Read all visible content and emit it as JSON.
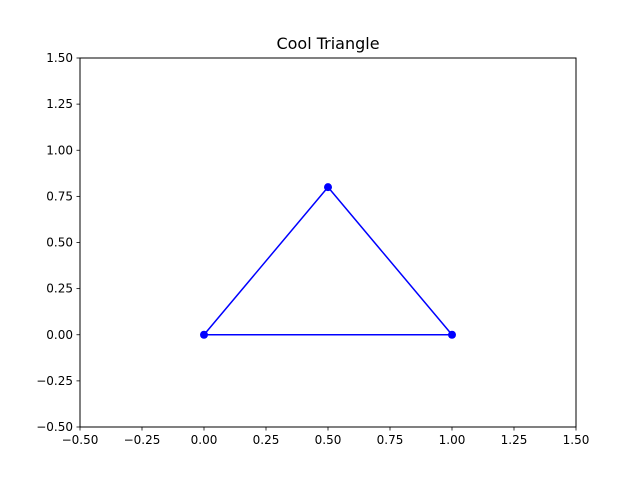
{
  "chart_data": {
    "type": "line",
    "title": "Cool Triangle",
    "xlabel": "",
    "ylabel": "",
    "xlim": [
      -0.5,
      1.5
    ],
    "ylim": [
      -0.5,
      1.5
    ],
    "xticks": [
      -0.5,
      -0.25,
      0.0,
      0.25,
      0.5,
      0.75,
      1.0,
      1.25,
      1.5
    ],
    "yticks": [
      -0.5,
      -0.25,
      0.0,
      0.25,
      0.5,
      0.75,
      1.0,
      1.25,
      1.5
    ],
    "xtick_labels": [
      "−0.50",
      "−0.25",
      "0.00",
      "0.25",
      "0.50",
      "0.75",
      "1.00",
      "1.25",
      "1.50"
    ],
    "ytick_labels": [
      "−0.50",
      "−0.25",
      "0.00",
      "0.25",
      "0.50",
      "0.75",
      "1.00",
      "1.25",
      "1.50"
    ],
    "grid": false,
    "series": [
      {
        "color": "#0000ff",
        "marker": "circle",
        "points": [
          {
            "x": 0.0,
            "y": 0.0
          },
          {
            "x": 0.5,
            "y": 0.8
          },
          {
            "x": 1.0,
            "y": 0.0
          },
          {
            "x": 0.0,
            "y": 0.0
          }
        ]
      }
    ]
  }
}
